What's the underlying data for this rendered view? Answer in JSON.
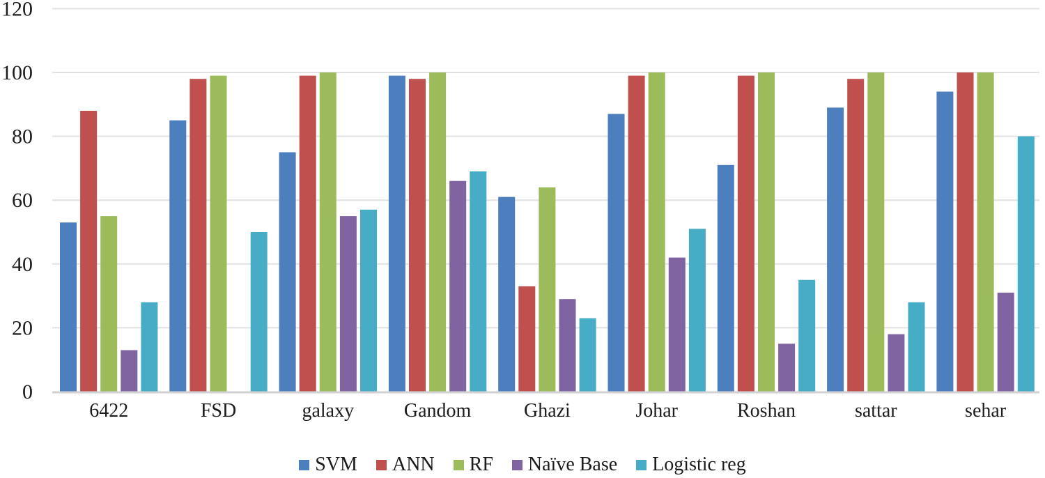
{
  "chart_data": {
    "type": "bar",
    "title": "",
    "xlabel": "",
    "ylabel": "",
    "categories": [
      "6422",
      "FSD",
      "galaxy",
      "Gandom",
      "Ghazi",
      "Johar",
      "Roshan",
      "sattar",
      "sehar"
    ],
    "series": [
      {
        "name": "SVM",
        "color": "#4D7EBE",
        "values": [
          53,
          85,
          75,
          99,
          61,
          87,
          71,
          89,
          94
        ]
      },
      {
        "name": "ANN",
        "color": "#C0504D",
        "values": [
          88,
          98,
          99,
          98,
          33,
          99,
          99,
          98,
          100
        ]
      },
      {
        "name": "RF",
        "color": "#9CBB5A",
        "values": [
          55,
          99,
          100,
          100,
          64,
          100,
          100,
          100,
          100
        ]
      },
      {
        "name": "Naïve Base",
        "color": "#8064A2",
        "values": [
          13,
          0,
          55,
          66,
          29,
          42,
          15,
          18,
          31
        ]
      },
      {
        "name": "Logistic reg",
        "color": "#47ACC5",
        "values": [
          28,
          50,
          57,
          69,
          23,
          51,
          35,
          28,
          80
        ]
      }
    ],
    "y_axis": {
      "min": 0,
      "max": 120,
      "step": 20,
      "ticks": [
        "0",
        "20",
        "40",
        "60",
        "80",
        "100",
        "120"
      ]
    },
    "grid": true,
    "legend_position": "bottom"
  },
  "colors": {
    "background": "#FFFFFF",
    "gridline": "#E2E2E4",
    "axis_line": "#D2D2D5",
    "text": "#1C1C1C"
  }
}
